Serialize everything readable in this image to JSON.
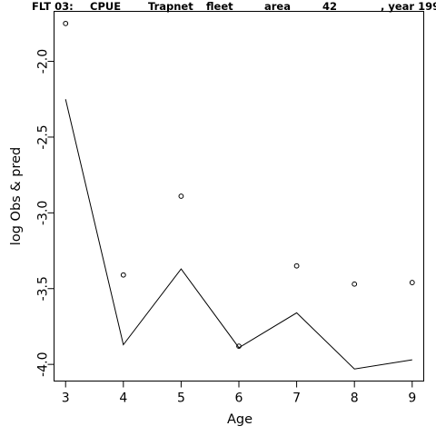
{
  "chart_data": {
    "type": "scatter",
    "title_parts": [
      "FLT 03:",
      "CPUE",
      "Trapnet",
      "fleet",
      "area",
      "42",
      ", year 199"
    ],
    "xlabel": "Age",
    "ylabel": "log Obs & pred",
    "xlim": [
      2.8,
      9.2
    ],
    "ylim": [
      -4.11,
      -1.67
    ],
    "xticks": [
      3,
      4,
      5,
      6,
      7,
      8,
      9
    ],
    "yticks": [
      -2.0,
      -2.5,
      -3.0,
      -3.5,
      -4.0
    ],
    "ytick_labels": [
      "-2.0",
      "-2.5",
      "-3.0",
      "-3.5",
      "-4.0"
    ],
    "grid": false,
    "series": [
      {
        "style": "points",
        "marker": "open-circle",
        "x": [
          3,
          4,
          5,
          6,
          7,
          8,
          9
        ],
        "y": [
          -1.75,
          -3.41,
          -2.89,
          -3.88,
          -3.35,
          -3.47,
          -3.46
        ]
      },
      {
        "style": "line",
        "x": [
          3,
          4,
          5,
          6,
          7,
          8,
          9
        ],
        "y": [
          -2.25,
          -3.87,
          -3.37,
          -3.89,
          -3.66,
          -4.03,
          -3.97
        ]
      }
    ],
    "colors": {
      "foreground": "#000000",
      "background": "#ffffff"
    }
  }
}
